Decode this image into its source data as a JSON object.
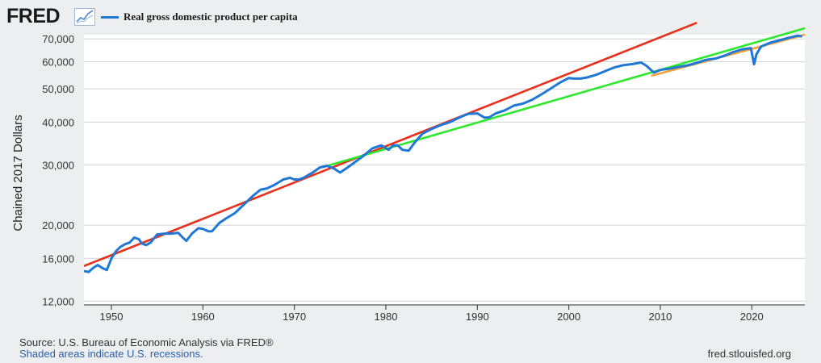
{
  "header": {
    "logo_text": "FRED",
    "logo_icon": "chart-line-icon",
    "legend_label": "Real gross domestic product per capita"
  },
  "chart_data": {
    "type": "line",
    "title": "Real gross domestic product per capita",
    "ylabel": "Chained 2017 Dollars",
    "xlabel": "",
    "yscale": "log",
    "ylim": [
      11700,
      72000
    ],
    "xlim": [
      1947,
      2025.8
    ],
    "yticks": [
      12000,
      16000,
      20000,
      30000,
      40000,
      50000,
      60000,
      70000
    ],
    "ytick_labels": [
      "12,000",
      "16,000",
      "20,000",
      "30,000",
      "40,000",
      "50,000",
      "60,000",
      "70,000"
    ],
    "xticks": [
      1950,
      1960,
      1970,
      1980,
      1990,
      2000,
      2010,
      2020
    ],
    "xtick_labels": [
      "1950",
      "1960",
      "1970",
      "1980",
      "1990",
      "2000",
      "2010",
      "2020"
    ],
    "series": [
      {
        "name": "Real gross domestic product per capita",
        "color": "#1f77d6",
        "x": [
          1947,
          1947.5,
          1948,
          1948.5,
          1949,
          1949.5,
          1950,
          1950.5,
          1951,
          1951.5,
          1952,
          1952.5,
          1953,
          1953.3,
          1953.8,
          1954.3,
          1955,
          1955.8,
          1956.5,
          1957.3,
          1957.8,
          1958.2,
          1958.8,
          1959.5,
          1960,
          1960.6,
          1961,
          1961.8,
          1962.5,
          1963.5,
          1964.5,
          1965.5,
          1966.3,
          1967,
          1967.8,
          1968.8,
          1969.5,
          1970,
          1970.5,
          1971,
          1972,
          1972.8,
          1973.6,
          1974.3,
          1975,
          1975.6,
          1976.5,
          1977.5,
          1978.5,
          1979.5,
          1980.3,
          1980.8,
          1981.3,
          1981.8,
          1982.5,
          1983.2,
          1984,
          1985,
          1986,
          1987,
          1988,
          1989,
          1990,
          1990.8,
          1991.3,
          1992,
          1993,
          1994,
          1995,
          1996,
          1997,
          1998,
          1999,
          2000,
          2000.5,
          2001.3,
          2002,
          2003,
          2004,
          2005,
          2006,
          2007,
          2007.9,
          2008.5,
          2009.3,
          2010,
          2011,
          2012,
          2013,
          2014,
          2015,
          2016,
          2017,
          2018,
          2019,
          2019.9,
          2020.25,
          2020.5,
          2021,
          2022,
          2023,
          2024,
          2025,
          2025.5
        ],
        "values": [
          14700,
          14600,
          15000,
          15300,
          15000,
          14800,
          16000,
          16800,
          17300,
          17600,
          17800,
          18400,
          18200,
          17700,
          17500,
          17800,
          18800,
          18900,
          18900,
          19000,
          18400,
          18000,
          18900,
          19600,
          19500,
          19200,
          19200,
          20300,
          20900,
          21700,
          23000,
          24400,
          25400,
          25600,
          26200,
          27200,
          27500,
          27200,
          27200,
          27500,
          28500,
          29500,
          29800,
          29300,
          28500,
          29200,
          30400,
          31800,
          33500,
          34200,
          33200,
          34200,
          34200,
          33200,
          33000,
          35000,
          37000,
          38200,
          39200,
          40000,
          41200,
          42300,
          42400,
          41200,
          41300,
          42400,
          43300,
          44700,
          45300,
          46500,
          48200,
          50100,
          52100,
          53800,
          53600,
          53600,
          54000,
          55000,
          56400,
          57800,
          58700,
          59100,
          59700,
          58400,
          55800,
          56800,
          57300,
          58000,
          58600,
          59600,
          60800,
          61300,
          62500,
          64100,
          65300,
          65800,
          59000,
          63000,
          66500,
          68200,
          69300,
          70500,
          71500,
          71200
        ]
      },
      {
        "name": "Trend line (red)",
        "color": "#e8301c",
        "x": [
          1947,
          2014
        ],
        "values": [
          15200,
          78000
        ]
      },
      {
        "name": "Trend line (green)",
        "color": "#2ee82e",
        "x": [
          1973,
          2025.8
        ],
        "values": [
          29500,
          75200
        ]
      },
      {
        "name": "Trend line (orange)",
        "color": "#f5a03a",
        "x": [
          2009,
          2025.8
        ],
        "values": [
          54600,
          72000
        ]
      }
    ],
    "grid": true
  },
  "footer": {
    "source": "Source: U.S. Bureau of Economic Analysis via FRED®",
    "recessions": "Shaded areas indicate U.S. recessions.",
    "url": "fred.stlouisfed.org"
  }
}
